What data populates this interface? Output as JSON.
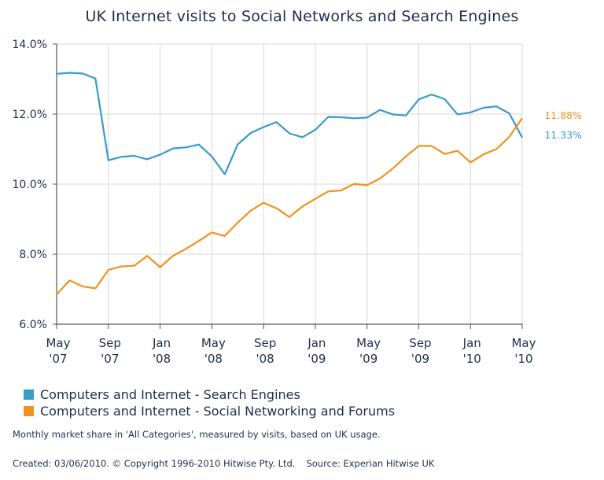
{
  "chart_data": {
    "type": "line",
    "title": "UK Internet visits to Social Networks and Search Engines",
    "xlabel": "",
    "ylabel": "",
    "ylim": [
      6.0,
      14.0
    ],
    "y_ticks": [
      "6.0%",
      "8.0%",
      "10.0%",
      "12.0%",
      "14.0%"
    ],
    "y_tick_values": [
      6,
      8,
      10,
      12,
      14
    ],
    "x_ticks": [
      {
        "month": "May",
        "year": "'07"
      },
      {
        "month": "Sep",
        "year": "'07"
      },
      {
        "month": "Jan",
        "year": "'08"
      },
      {
        "month": "May",
        "year": "'08"
      },
      {
        "month": "Sep",
        "year": "'08"
      },
      {
        "month": "Jan",
        "year": "'09"
      },
      {
        "month": "May",
        "year": "'09"
      },
      {
        "month": "Sep",
        "year": "'09"
      },
      {
        "month": "Jan",
        "year": "'10"
      },
      {
        "month": "May",
        "year": "'10"
      }
    ],
    "grid": true,
    "legend_position": "bottom",
    "series": [
      {
        "name": "Computers and Internet - Search Engines",
        "color": "#3a9ac9",
        "end_label": "11.33%",
        "values": [
          13.15,
          13.18,
          13.16,
          13.02,
          10.68,
          10.78,
          10.81,
          10.71,
          10.84,
          11.02,
          11.05,
          11.13,
          10.79,
          10.28,
          11.13,
          11.46,
          11.63,
          11.77,
          11.45,
          11.34,
          11.55,
          11.92,
          11.91,
          11.88,
          11.9,
          12.12,
          11.99,
          11.96,
          12.42,
          12.56,
          12.43,
          11.99,
          12.05,
          12.18,
          12.22,
          12.02,
          11.33
        ]
      },
      {
        "name": "Computers and Internet - Social Networking and Forums",
        "color": "#f0921e",
        "end_label": "11.88%",
        "values": [
          6.85,
          7.25,
          7.08,
          7.02,
          7.55,
          7.65,
          7.67,
          7.95,
          7.63,
          7.95,
          8.15,
          8.38,
          8.62,
          8.52,
          8.9,
          9.24,
          9.47,
          9.31,
          9.06,
          9.36,
          9.58,
          9.79,
          9.82,
          10.01,
          9.97,
          10.16,
          10.45,
          10.79,
          11.09,
          11.09,
          10.86,
          10.95,
          10.62,
          10.85,
          11.0,
          11.35,
          11.88
        ]
      }
    ]
  },
  "notes": {
    "description": "Monthly market share in 'All Categories', measured by visits, based on UK usage.",
    "created": "Created: 03/06/2010. © Copyright 1996-2010 Hitwise Pty. Ltd.",
    "source": "Source: Experian Hitwise UK"
  }
}
